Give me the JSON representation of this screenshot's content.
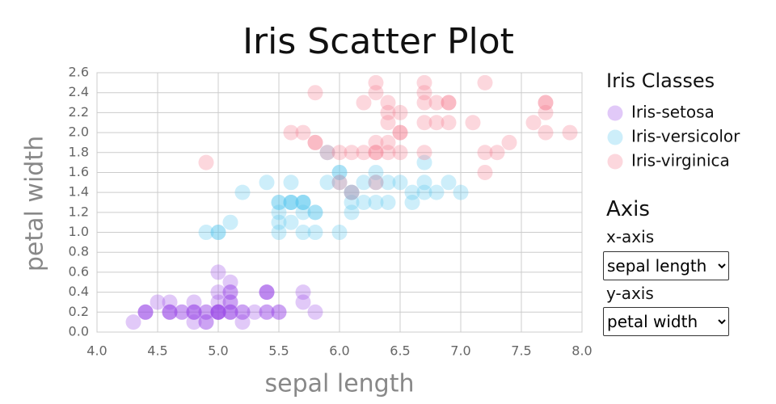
{
  "chart_data": {
    "type": "scatter",
    "title": "Iris Scatter Plot",
    "x_label": "sepal length",
    "y_label": "petal width",
    "legend_title": "Iris Classes",
    "legend": "right",
    "grid": true,
    "opacity": 0.3,
    "xlim": [
      4,
      8
    ],
    "xticks": [
      {
        "value": 4,
        "label": "4.0"
      },
      4.5,
      {
        "value": 5,
        "label": "5.0"
      },
      5.5,
      {
        "value": 6,
        "label": "6.0"
      },
      6.5,
      {
        "value": 7,
        "label": "7.0"
      },
      7.5,
      {
        "value": 8,
        "label": "8.0"
      }
    ],
    "ylim": [
      0,
      2.6
    ],
    "yticks": [
      {
        "value": 0,
        "label": "0.0"
      },
      0.2,
      0.4,
      0.6,
      0.8,
      {
        "value": 1,
        "label": "1.0"
      },
      1.2,
      1.4,
      1.6,
      1.8,
      {
        "value": 2,
        "label": "2.0"
      },
      2.2,
      2.4,
      2.6
    ],
    "series": [
      {
        "name": "Iris-setosa",
        "color": "#9b4de8",
        "x": [
          5.1,
          4.9,
          4.7,
          4.6,
          5.0,
          5.4,
          4.6,
          5.0,
          4.4,
          4.9,
          5.4,
          4.8,
          4.8,
          4.3,
          5.8,
          5.7,
          5.4,
          5.1,
          5.7,
          5.1,
          5.4,
          5.1,
          4.6,
          5.1,
          4.8,
          5.0,
          5.0,
          5.2,
          5.2,
          4.7,
          4.8,
          5.4,
          5.2,
          5.5,
          4.9,
          5.0,
          5.5,
          4.9,
          4.4,
          5.1,
          5.0,
          4.5,
          4.4,
          5.0,
          5.1,
          4.8,
          5.1,
          4.6,
          5.3,
          5.0
        ],
        "values": [
          0.2,
          0.2,
          0.2,
          0.2,
          0.2,
          0.4,
          0.3,
          0.2,
          0.2,
          0.1,
          0.2,
          0.2,
          0.1,
          0.1,
          0.2,
          0.4,
          0.4,
          0.3,
          0.3,
          0.3,
          0.2,
          0.4,
          0.2,
          0.5,
          0.2,
          0.2,
          0.4,
          0.2,
          0.2,
          0.2,
          0.2,
          0.4,
          0.1,
          0.2,
          0.2,
          0.2,
          0.2,
          0.1,
          0.2,
          0.2,
          0.3,
          0.3,
          0.2,
          0.6,
          0.4,
          0.3,
          0.2,
          0.2,
          0.2,
          0.2
        ]
      },
      {
        "name": "Iris-versicolor",
        "color": "#59c8f0",
        "x": [
          7.0,
          6.4,
          6.9,
          5.5,
          6.5,
          5.7,
          6.3,
          4.9,
          6.6,
          5.2,
          5.0,
          5.9,
          6.0,
          6.1,
          5.6,
          6.7,
          5.6,
          5.8,
          6.2,
          5.6,
          5.9,
          6.1,
          6.3,
          6.1,
          6.4,
          6.6,
          6.8,
          6.7,
          6.0,
          5.7,
          5.5,
          5.5,
          5.8,
          6.0,
          5.4,
          6.0,
          6.7,
          6.3,
          5.6,
          5.5,
          5.5,
          6.1,
          5.8,
          5.0,
          5.6,
          5.7,
          5.7,
          6.2,
          5.1,
          5.7
        ],
        "values": [
          1.4,
          1.5,
          1.5,
          1.3,
          1.5,
          1.3,
          1.6,
          1.0,
          1.3,
          1.4,
          1.0,
          1.5,
          1.0,
          1.4,
          1.3,
          1.4,
          1.5,
          1.0,
          1.5,
          1.1,
          1.8,
          1.3,
          1.5,
          1.2,
          1.3,
          1.4,
          1.4,
          1.7,
          1.5,
          1.0,
          1.1,
          1.0,
          1.2,
          1.6,
          1.5,
          1.6,
          1.5,
          1.3,
          1.3,
          1.3,
          1.2,
          1.4,
          1.2,
          1.0,
          1.3,
          1.2,
          1.3,
          1.3,
          1.1,
          1.3
        ]
      },
      {
        "name": "Iris-virginica",
        "color": "#f47a8e",
        "x": [
          6.3,
          5.8,
          7.1,
          6.3,
          6.5,
          7.6,
          4.9,
          7.3,
          6.7,
          7.2,
          6.5,
          6.4,
          6.8,
          5.7,
          5.8,
          6.4,
          6.5,
          7.7,
          7.7,
          6.0,
          6.9,
          5.6,
          7.7,
          6.3,
          6.7,
          7.2,
          6.2,
          6.1,
          6.4,
          7.2,
          7.4,
          7.9,
          6.4,
          6.3,
          6.1,
          7.7,
          6.3,
          6.4,
          6.0,
          6.9,
          6.7,
          6.9,
          5.8,
          6.8,
          6.7,
          6.7,
          6.3,
          6.5,
          6.2,
          5.9
        ],
        "values": [
          2.5,
          1.9,
          2.1,
          1.8,
          2.2,
          2.1,
          1.7,
          1.8,
          1.8,
          2.5,
          2.0,
          1.9,
          2.1,
          2.0,
          2.4,
          2.3,
          1.8,
          2.2,
          2.3,
          1.5,
          2.3,
          2.0,
          2.0,
          1.8,
          2.1,
          1.8,
          1.8,
          1.8,
          2.1,
          1.6,
          1.9,
          2.0,
          2.2,
          1.5,
          1.4,
          2.3,
          2.4,
          1.8,
          1.8,
          2.1,
          2.4,
          2.3,
          1.9,
          2.3,
          2.5,
          2.3,
          1.9,
          2.0,
          2.3,
          1.8
        ]
      }
    ]
  },
  "controls": {
    "title": "Axis",
    "x_axis_label": "x-axis",
    "x_axis_value": "sepal length",
    "y_axis_label": "y-axis",
    "y_axis_value": "petal width"
  }
}
